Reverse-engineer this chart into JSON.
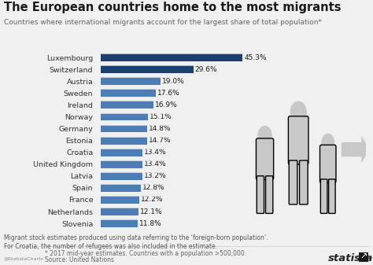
{
  "title": "The European countries home to the most migrants",
  "subtitle": "Countries where international migrants account for the largest share of total population*",
  "countries": [
    "Luxembourg",
    "Switzerland",
    "Austria",
    "Sweden",
    "Ireland",
    "Norway",
    "Germany",
    "Estonia",
    "Croatia",
    "United Kingdom",
    "Latvia",
    "Spain",
    "France",
    "Netherlands",
    "Slovenia"
  ],
  "values": [
    45.3,
    29.6,
    19.0,
    17.6,
    16.9,
    15.1,
    14.8,
    14.7,
    13.4,
    13.4,
    13.2,
    12.8,
    12.2,
    12.1,
    11.8
  ],
  "bar_color_top": "#1b3f6e",
  "bar_color": "#4e7db5",
  "background_color": "#f0f0f0",
  "text_color": "#1a1a1a",
  "label_color": "#333333",
  "value_color": "#1a1a1a",
  "footnote1": "Migrant stock estimates produced using data referring to the ‘foreign-born population’.",
  "footnote2": "For Croatia, the number of refugees was also included in the estimate.",
  "footnote3": "* 2017 mid-year estimates. Countries with a population >500,000.",
  "footnote4": "Source: United Nations",
  "title_fontsize": 10.5,
  "subtitle_fontsize": 6.5,
  "label_fontsize": 6.8,
  "value_fontsize": 6.5,
  "footnote_fontsize": 5.5,
  "xlim_max": 50
}
